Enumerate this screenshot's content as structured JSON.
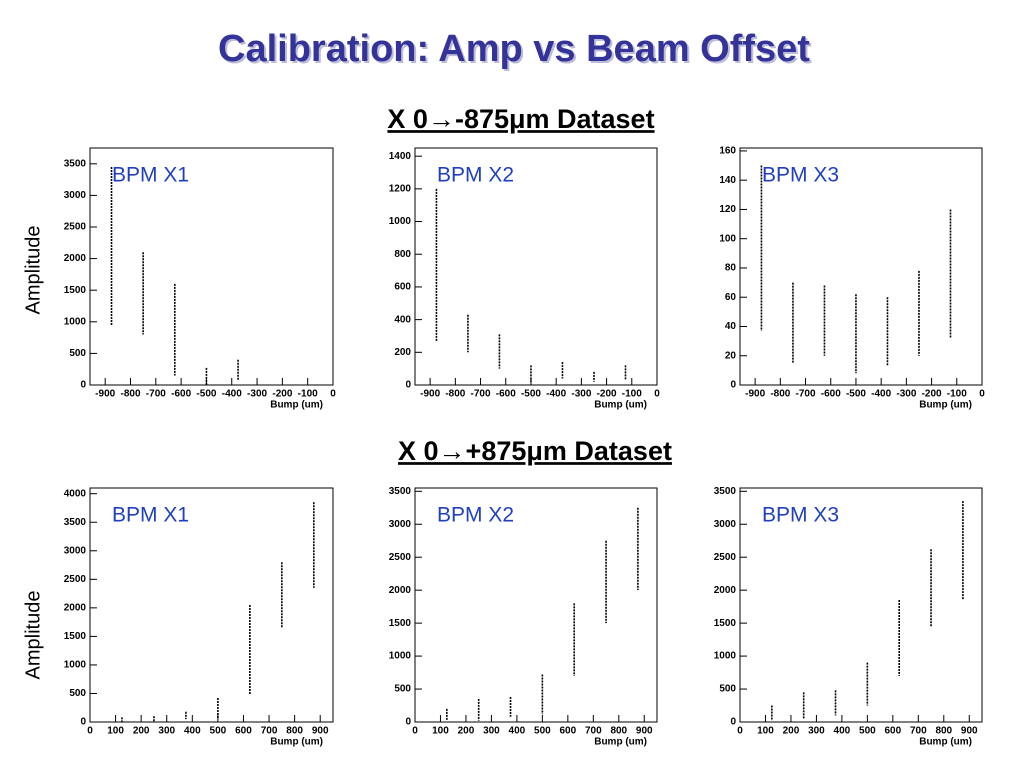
{
  "slide": {
    "title": "Calibration: Amp vs Beam Offset",
    "sections": [
      {
        "title": "X 0→-875μm Dataset",
        "ylabel": "Amplitude"
      },
      {
        "title": "X 0→+875μm Dataset",
        "ylabel": "Amplitude"
      }
    ]
  },
  "chart_data": [
    {
      "type": "strip",
      "annotation": "BPM X1",
      "xlabel": "Bump (um)",
      "color": "#000000",
      "x": [
        -875,
        -750,
        -625,
        -500,
        -375
      ],
      "low": [
        950,
        800,
        150,
        0,
        80
      ],
      "high": [
        3450,
        2100,
        1600,
        270,
        400
      ],
      "xlim": [
        -960,
        0
      ],
      "ylim": [
        0,
        3750
      ],
      "xticks": [
        -900,
        -800,
        -700,
        -600,
        -500,
        -400,
        -300,
        -200,
        -100,
        0
      ],
      "yticks": [
        0,
        500,
        1000,
        1500,
        2000,
        2500,
        3000,
        3500
      ]
    },
    {
      "type": "strip",
      "annotation": "BPM X2",
      "xlabel": "Bump (um)",
      "color": "#000000",
      "x": [
        -875,
        -750,
        -625,
        -500,
        -375,
        -250,
        -125
      ],
      "low": [
        270,
        200,
        100,
        20,
        40,
        20,
        30
      ],
      "high": [
        1200,
        430,
        310,
        120,
        140,
        80,
        120
      ],
      "xlim": [
        -960,
        0
      ],
      "ylim": [
        0,
        1450
      ],
      "xticks": [
        -900,
        -800,
        -700,
        -600,
        -500,
        -400,
        -300,
        -200,
        -100,
        0
      ],
      "yticks": [
        0,
        200,
        400,
        600,
        800,
        1000,
        1200,
        1400
      ]
    },
    {
      "type": "strip",
      "annotation": "BPM X3",
      "xlabel": "Bump (um)",
      "color": "#000000",
      "x": [
        -875,
        -750,
        -625,
        -500,
        -375,
        -250,
        -125
      ],
      "low": [
        37,
        15,
        20,
        8,
        13,
        20,
        32
      ],
      "high": [
        150,
        70,
        68,
        62,
        60,
        78,
        120
      ],
      "xlim": [
        -960,
        0
      ],
      "ylim": [
        0,
        162
      ],
      "xticks": [
        -900,
        -800,
        -700,
        -600,
        -500,
        -400,
        -300,
        -200,
        -100,
        0
      ],
      "yticks": [
        0,
        20,
        40,
        60,
        80,
        100,
        120,
        140,
        160
      ]
    },
    {
      "type": "strip",
      "annotation": "BPM X1",
      "xlabel": "Bump (um)",
      "color": "#000000",
      "x": [
        125,
        250,
        375,
        500,
        625,
        750,
        875
      ],
      "low": [
        0,
        0,
        50,
        50,
        480,
        1650,
        2350
      ],
      "high": [
        80,
        100,
        180,
        420,
        2050,
        2800,
        3850
      ],
      "xlim": [
        0,
        950
      ],
      "ylim": [
        0,
        4100
      ],
      "xticks": [
        0,
        100,
        200,
        300,
        400,
        500,
        600,
        700,
        800,
        900
      ],
      "yticks": [
        0,
        500,
        1000,
        1500,
        2000,
        2500,
        3000,
        3500,
        4000
      ]
    },
    {
      "type": "strip",
      "annotation": "BPM X2",
      "xlabel": "Bump (um)",
      "color": "#000000",
      "x": [
        125,
        250,
        375,
        500,
        625,
        750,
        875
      ],
      "low": [
        20,
        20,
        80,
        120,
        700,
        1500,
        2000
      ],
      "high": [
        200,
        350,
        380,
        720,
        1800,
        2750,
        3250
      ],
      "xlim": [
        0,
        950
      ],
      "ylim": [
        0,
        3550
      ],
      "xticks": [
        0,
        100,
        200,
        300,
        400,
        500,
        600,
        700,
        800,
        900
      ],
      "yticks": [
        0,
        500,
        1000,
        1500,
        2000,
        2500,
        3000,
        3500
      ]
    },
    {
      "type": "strip",
      "annotation": "BPM X3",
      "xlabel": "Bump (um)",
      "color": "#000000",
      "x": [
        125,
        250,
        375,
        500,
        625,
        750,
        875
      ],
      "low": [
        20,
        50,
        100,
        250,
        700,
        1450,
        1850
      ],
      "high": [
        250,
        450,
        480,
        900,
        1850,
        2620,
        3350
      ],
      "xlim": [
        0,
        950
      ],
      "ylim": [
        0,
        3550
      ],
      "xticks": [
        0,
        100,
        200,
        300,
        400,
        500,
        600,
        700,
        800,
        900
      ],
      "yticks": [
        0,
        500,
        1000,
        1500,
        2000,
        2500,
        3000,
        3500
      ]
    }
  ]
}
